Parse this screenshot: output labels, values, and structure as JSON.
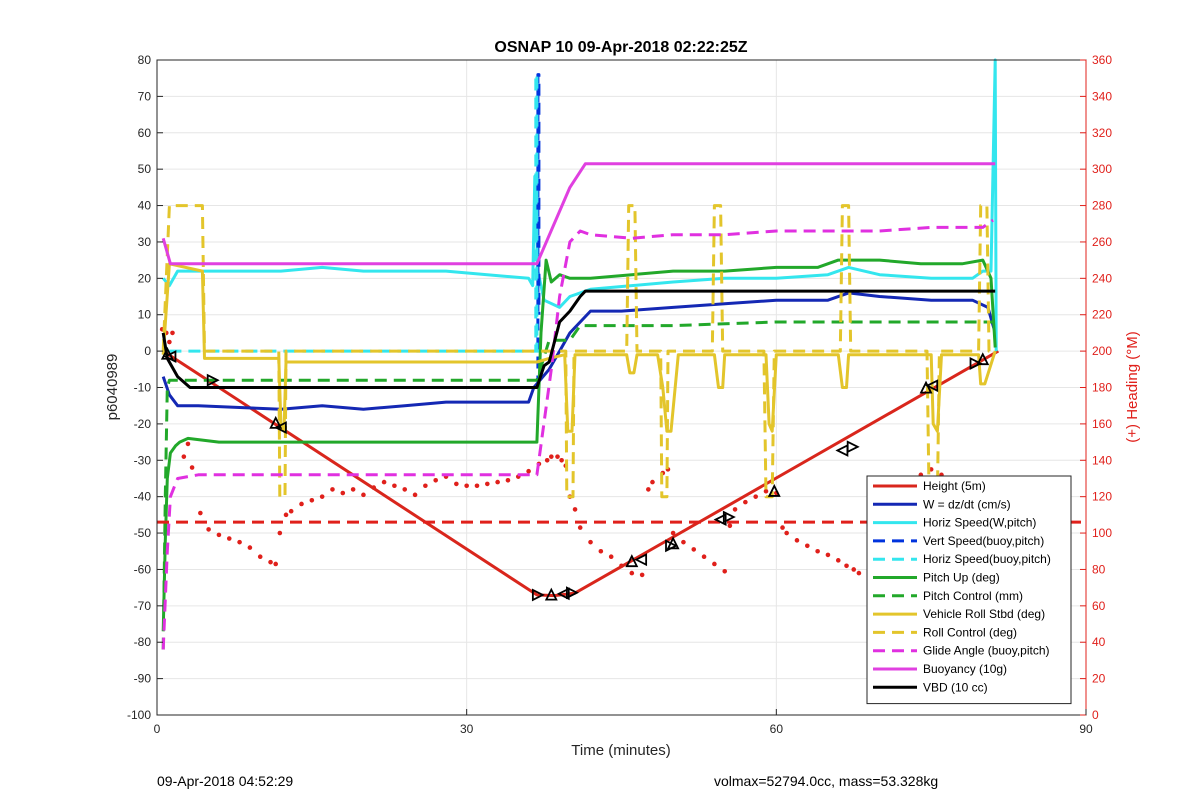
{
  "footer": {
    "left": "09-Apr-2018 04:52:29",
    "right": "volmax=52794.0cc, mass=53.328kg"
  },
  "chart_data": {
    "type": "line",
    "title": "OSNAP 10 09-Apr-2018 02:22:25Z",
    "xlabel": "Time (minutes)",
    "ylabel": "p6040989",
    "y2label": "(+) Heading (°M)",
    "xlim": [
      0,
      90
    ],
    "ylim": [
      -100,
      80
    ],
    "y2lim": [
      0,
      360
    ],
    "xticks": [
      0,
      30,
      60,
      90
    ],
    "yticks": [
      -100,
      -90,
      -80,
      -70,
      -60,
      -50,
      -40,
      -30,
      -20,
      -10,
      0,
      10,
      20,
      30,
      40,
      50,
      60,
      70,
      80
    ],
    "y2ticks": [
      0,
      20,
      40,
      60,
      80,
      100,
      120,
      140,
      160,
      180,
      200,
      220,
      240,
      260,
      280,
      300,
      320,
      340,
      360
    ],
    "grid": true,
    "legend_position": "bottom-right",
    "colors": {
      "heading_axis": "#e0201b",
      "height": "#d9261c",
      "w": "#1428b4",
      "horiz_speed": "#33e6ee",
      "pitch": "#22a82a",
      "roll": "#e3c52b",
      "glide": "#e030e0",
      "buoyancy": "#e040e0",
      "vbd": "#000000",
      "vert_speed": "#0033dd"
    },
    "series": [
      {
        "name": "Height (5m)",
        "style": "solid",
        "color": "#d9261c",
        "x": [
          0.6,
          36.8,
          38.5,
          40.5,
          81.5
        ],
        "y": [
          0,
          -67,
          -67.2,
          -66.5,
          0
        ]
      },
      {
        "name": "W = dz/dt (cm/s)",
        "style": "solid",
        "color": "#1428b4",
        "x": [
          0.6,
          1.2,
          2,
          4,
          8,
          12,
          16,
          20,
          24,
          28,
          32,
          36,
          36.5,
          38,
          39,
          40,
          42,
          45,
          50,
          55,
          60,
          65,
          67,
          70,
          75,
          79,
          80.5,
          81.2
        ],
        "y": [
          -7,
          -12,
          -15,
          -15,
          -15.5,
          -16,
          -15,
          -16,
          -15,
          -14,
          -14,
          -14,
          -10,
          -5,
          0,
          5,
          11,
          11,
          12,
          13,
          14,
          14,
          16,
          15,
          14,
          14,
          12,
          5
        ]
      },
      {
        "name": "Horiz Speed(W,pitch)",
        "style": "solid",
        "color": "#33e6ee",
        "x": [
          0.6,
          1.2,
          2,
          4,
          8,
          12,
          16,
          20,
          24,
          28,
          32,
          36,
          36.4,
          36.6,
          36.9,
          37.5,
          39,
          40,
          42,
          46,
          50,
          55,
          60,
          65,
          67,
          70,
          75,
          79,
          80,
          80.8,
          81.2,
          81.3
        ],
        "y": [
          20,
          18,
          22,
          22,
          22,
          22,
          23,
          22,
          22,
          22,
          21,
          20,
          18,
          48,
          22,
          14,
          12,
          15,
          17,
          18,
          19,
          20,
          20,
          21,
          23,
          21,
          20,
          20,
          22,
          22,
          80,
          0
        ]
      },
      {
        "name": "Vert Speed(buoy,pitch)",
        "style": "dash",
        "color": "#0033dd",
        "x": [
          36.9,
          36.9,
          37.0,
          37.0
        ],
        "y": [
          -10,
          76,
          76,
          10
        ]
      },
      {
        "name": "Horiz Speed(buoy,pitch)",
        "style": "dash",
        "color": "#33e6ee",
        "x": [
          1.2,
          4,
          10,
          20,
          30,
          36.5,
          36.7,
          36.7,
          36.8,
          36.8,
          37.0
        ],
        "y": [
          0,
          0,
          0,
          0,
          0,
          0,
          0,
          76,
          76,
          0,
          0
        ]
      },
      {
        "name": "Pitch Up (deg)",
        "style": "solid",
        "color": "#22a82a",
        "x": [
          0.6,
          0.8,
          1.0,
          1.3,
          1.8,
          2.2,
          3,
          6,
          10,
          14,
          18,
          22,
          26,
          30,
          34,
          36.8,
          37.2,
          37.7,
          38.2,
          39,
          40,
          42,
          46,
          50,
          55,
          60,
          64,
          66,
          70,
          74,
          78,
          80,
          80.8,
          81.2
        ],
        "y": [
          -77,
          -52,
          -35,
          -28,
          -26,
          -25,
          -24,
          -25,
          -25,
          -25,
          -25,
          -25,
          -25,
          -25,
          -25,
          -25,
          5,
          25,
          19,
          21,
          20,
          20,
          21,
          22,
          22,
          23,
          23,
          25,
          25,
          24,
          24,
          25,
          20,
          1
        ]
      },
      {
        "name": "Pitch Control (mm)",
        "style": "dash",
        "color": "#22a82a",
        "x": [
          0.6,
          0.8,
          1.0,
          1.2,
          2,
          10,
          20,
          30,
          36.8,
          38,
          40,
          41,
          50,
          60,
          70,
          81
        ],
        "y": [
          -82,
          -40,
          -10,
          -8,
          -8,
          -8,
          -8,
          -8,
          -8,
          3,
          3,
          7,
          7,
          8,
          8,
          8
        ]
      },
      {
        "name": "Vehicle Roll Stbd (deg)",
        "style": "solid",
        "color": "#e3c52b",
        "x": [
          0.6,
          1.2,
          4.4,
          4.6,
          5,
          10,
          11.8,
          12,
          12.3,
          12.5,
          13,
          20,
          30,
          36.8,
          38,
          39.5,
          39.8,
          40.2,
          40.5,
          41,
          45.5,
          45.8,
          46.2,
          46.5,
          48.5,
          49,
          49.4,
          49.8,
          50.5,
          54,
          54.4,
          54.8,
          55,
          59,
          59.3,
          59.6,
          60,
          60.5,
          66,
          66.4,
          66.8,
          67,
          75,
          75.2,
          75.6,
          76,
          76.5,
          79.6,
          79.8,
          80.2,
          81.2
        ],
        "y": [
          -1,
          24,
          22,
          -2,
          -2,
          -2,
          -2,
          -20,
          -22,
          -3,
          -3,
          -3,
          -3,
          -3,
          -2,
          -1,
          -22,
          -22,
          -1,
          -1,
          -1,
          -6,
          -6,
          -1,
          -1,
          -10,
          -22,
          -22,
          -1,
          -1,
          -10,
          -10,
          -1,
          -1,
          -20,
          -22,
          -1,
          -1,
          -1,
          -10,
          -10,
          -1,
          -1,
          -20,
          -22,
          -1,
          -1,
          -1,
          -9,
          -9,
          0
        ]
      },
      {
        "name": "Roll Control (deg)",
        "style": "dash",
        "color": "#e3c52b",
        "x": [
          0.6,
          1.2,
          1.3,
          4.4,
          4.6,
          5,
          10,
          11.8,
          11.9,
          12.4,
          12.5,
          20,
          36.8,
          37,
          39.6,
          39.7,
          40.3,
          40.4,
          45.5,
          45.7,
          46.3,
          46.5,
          48.8,
          48.9,
          49.4,
          49.5,
          53.8,
          54.0,
          54.6,
          54.8,
          58.8,
          59.0,
          59.6,
          59.8,
          66.2,
          66.4,
          67,
          67.2,
          74.6,
          74.8,
          75.6,
          75.8,
          79.6,
          79.8,
          80.4,
          80.6,
          81.2
        ],
        "y": [
          0,
          40,
          40,
          40,
          0,
          0,
          0,
          0,
          -40,
          -40,
          0,
          0,
          0,
          0,
          0,
          -40,
          -40,
          0,
          0,
          40,
          40,
          0,
          0,
          -40,
          -40,
          0,
          0,
          40,
          40,
          0,
          0,
          -40,
          -40,
          0,
          0,
          40,
          40,
          0,
          0,
          -40,
          -40,
          0,
          0,
          40,
          40,
          0,
          0
        ]
      },
      {
        "name": "Glide Angle (buoy,pitch)",
        "style": "dash",
        "color": "#e030e0",
        "x": [
          0.6,
          1.0,
          1.3,
          2,
          4,
          10,
          20,
          30,
          36.8,
          38.2,
          39,
          40,
          41,
          42,
          46,
          50,
          55,
          60,
          65,
          70,
          75,
          80,
          81
        ],
        "y": [
          -82,
          -55,
          -40,
          -35,
          -34,
          -34,
          -34,
          -34,
          -34,
          -5,
          15,
          30,
          33,
          32,
          31,
          32,
          32,
          33,
          33,
          33,
          34,
          34,
          36
        ]
      },
      {
        "name": "Buoyancy (10g)",
        "style": "solid",
        "color": "#e040e0",
        "x": [
          0.6,
          1.3,
          5,
          10,
          20,
          30,
          36.8,
          40,
          41.5,
          45,
          50,
          60,
          70,
          80,
          81.2
        ],
        "y": [
          31,
          24,
          24,
          24,
          24,
          24,
          24,
          45,
          51.5,
          51.5,
          51.5,
          51.5,
          51.5,
          51.5,
          51.5
        ]
      },
      {
        "name": "VBD (10 cc)",
        "style": "solid",
        "color": "#000000",
        "x": [
          0.6,
          1.0,
          2,
          3.2,
          10,
          20,
          30,
          36.8,
          37.5,
          38,
          39,
          40,
          41,
          41.5,
          45,
          50,
          60,
          70,
          81.2
        ],
        "y": [
          5,
          -2,
          -7,
          -10,
          -10,
          -10,
          -10,
          -10,
          -4,
          -3,
          8,
          11,
          15,
          16.5,
          16.5,
          16.5,
          16.5,
          16.5,
          16.5
        ]
      },
      {
        "name": "Heading",
        "style": "dash",
        "color": "#e0201b",
        "axis": "right",
        "x": [
          0,
          90
        ],
        "y": [
          106,
          106
        ]
      }
    ],
    "heading_points_deg": [
      [
        0.5,
        212
      ],
      [
        0.9,
        210
      ],
      [
        1.2,
        205
      ],
      [
        1.5,
        210
      ],
      [
        2.6,
        142
      ],
      [
        3.0,
        149
      ],
      [
        3.4,
        136
      ],
      [
        4.2,
        111
      ],
      [
        5,
        102
      ],
      [
        6,
        99
      ],
      [
        7,
        97
      ],
      [
        8,
        95
      ],
      [
        9,
        92
      ],
      [
        10,
        87
      ],
      [
        11,
        84
      ],
      [
        11.5,
        83
      ],
      [
        11.9,
        100
      ],
      [
        12.5,
        110
      ],
      [
        13,
        112
      ],
      [
        14,
        116
      ],
      [
        15,
        118
      ],
      [
        16,
        120
      ],
      [
        17,
        124
      ],
      [
        18,
        122
      ],
      [
        19,
        124
      ],
      [
        20,
        121
      ],
      [
        21,
        125
      ],
      [
        22,
        128
      ],
      [
        23,
        126
      ],
      [
        24,
        124
      ],
      [
        25,
        121
      ],
      [
        26,
        126
      ],
      [
        27,
        129
      ],
      [
        28,
        131
      ],
      [
        29,
        127
      ],
      [
        30,
        126
      ],
      [
        31,
        126
      ],
      [
        32,
        127
      ],
      [
        33,
        128
      ],
      [
        34,
        129
      ],
      [
        35,
        131
      ],
      [
        36,
        134
      ],
      [
        37,
        138
      ],
      [
        37.8,
        140
      ],
      [
        38.2,
        142
      ],
      [
        38.8,
        142
      ],
      [
        39.2,
        140
      ],
      [
        39.6,
        137
      ],
      [
        40,
        120
      ],
      [
        40.5,
        113
      ],
      [
        41,
        103
      ],
      [
        42,
        95
      ],
      [
        43,
        90
      ],
      [
        44,
        87
      ],
      [
        45,
        82
      ],
      [
        46,
        78
      ],
      [
        47,
        77
      ],
      [
        47.6,
        124
      ],
      [
        48,
        128
      ],
      [
        49,
        133
      ],
      [
        49.5,
        135
      ],
      [
        50,
        100
      ],
      [
        51,
        95
      ],
      [
        52,
        91
      ],
      [
        53,
        87
      ],
      [
        54,
        83
      ],
      [
        55,
        79
      ],
      [
        55.5,
        104
      ],
      [
        56,
        113
      ],
      [
        57,
        117
      ],
      [
        58,
        120
      ],
      [
        59,
        123
      ],
      [
        60,
        122
      ],
      [
        60.6,
        103
      ],
      [
        61,
        100
      ],
      [
        62,
        96
      ],
      [
        63,
        93
      ],
      [
        64,
        90
      ],
      [
        65,
        88
      ],
      [
        66,
        85
      ],
      [
        66.8,
        82
      ],
      [
        67.5,
        80
      ],
      [
        68,
        78
      ],
      [
        69,
        105
      ],
      [
        70,
        118
      ],
      [
        71,
        122
      ],
      [
        72,
        124
      ],
      [
        73,
        128
      ],
      [
        74,
        132
      ],
      [
        75,
        135
      ],
      [
        76,
        132
      ],
      [
        77,
        128
      ],
      [
        78,
        123
      ],
      [
        79,
        122
      ],
      [
        80,
        124
      ],
      [
        81,
        126
      ]
    ],
    "marker_points": [
      [
        1.0,
        -1
      ],
      [
        1.4,
        -1.5
      ],
      [
        5.3,
        -8
      ],
      [
        11.5,
        -20
      ],
      [
        12.1,
        -21
      ],
      [
        36.8,
        -67
      ],
      [
        38.2,
        -67.2
      ],
      [
        39.5,
        -66.7
      ],
      [
        40.1,
        -66.4
      ],
      [
        46.0,
        -58
      ],
      [
        47.0,
        -57.3
      ],
      [
        49.7,
        -53.5
      ],
      [
        50.0,
        -53.1
      ],
      [
        54.7,
        -46.3
      ],
      [
        55.3,
        -45.6
      ],
      [
        59.8,
        -38.7
      ],
      [
        66.5,
        -27.3
      ],
      [
        67.3,
        -26.3
      ],
      [
        74.5,
        -10.3
      ],
      [
        75.2,
        -9.5
      ],
      [
        79.2,
        -3.4
      ],
      [
        80.0,
        -2.5
      ]
    ]
  }
}
